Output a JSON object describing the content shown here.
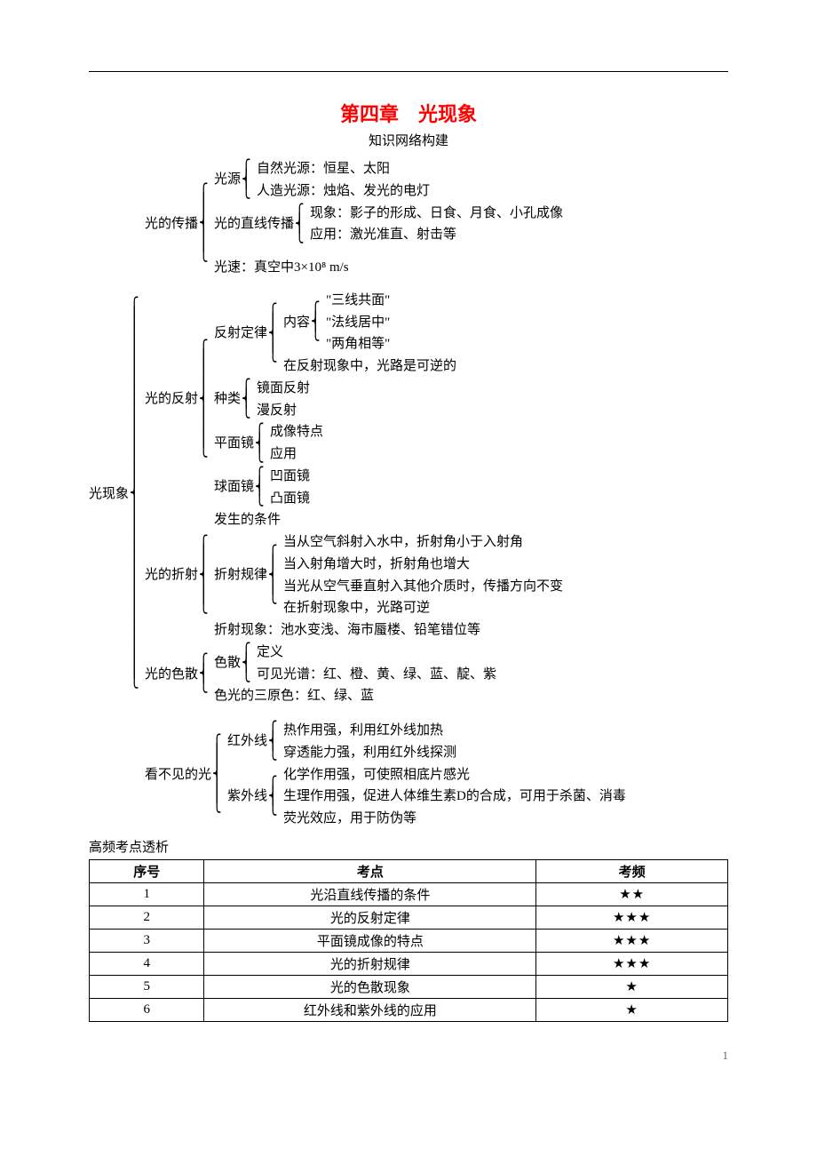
{
  "title": "第四章　光现象",
  "subtitle": "知识网络构建",
  "root_label": "光现象",
  "sections": {
    "propagation": {
      "label": "光的传播",
      "light_source": {
        "label": "光源",
        "natural": "自然光源：恒星、太阳",
        "artificial": "人造光源：烛焰、发光的电灯"
      },
      "straight_line": {
        "label": "光的直线传播",
        "phenomena": "现象：影子的形成、日食、月食、小孔成像",
        "application": "应用：激光准直、射击等"
      },
      "speed": "光速：真空中3×10⁸ m/s"
    },
    "reflection": {
      "label": "光的反射",
      "law": {
        "label": "反射定律",
        "content_label": "内容",
        "c1": "\"三线共面\"",
        "c2": "\"法线居中\"",
        "c3": "\"两角相等\"",
        "reversible": "在反射现象中，光路是可逆的"
      },
      "types": {
        "label": "种类",
        "t1": "镜面反射",
        "t2": "漫反射"
      },
      "plane_mirror": {
        "label": "平面镜",
        "p1": "成像特点",
        "p2": "应用"
      },
      "sphere_mirror": {
        "label": "球面镜",
        "s1": "凹面镜",
        "s2": "凸面镜"
      }
    },
    "refraction": {
      "label": "光的折射",
      "condition": "发生的条件",
      "rules": {
        "label": "折射规律",
        "r1": "当从空气斜射入水中，折射角小于入射角",
        "r2": "当入射角增大时，折射角也增大",
        "r3": "当光从空气垂直射入其他介质时，传播方向不变",
        "r4": "在折射现象中，光路可逆"
      },
      "phenomena": "折射现象：池水变浅、海市蜃楼、铅笔错位等"
    },
    "dispersion": {
      "label": "光的色散",
      "disp": {
        "label": "色散",
        "d1": "定义",
        "d2": "可见光谱：红、橙、黄、绿、蓝、靛、紫"
      },
      "primary": "色光的三原色：红、绿、蓝"
    },
    "invisible": {
      "label": "看不见的光",
      "ir": {
        "label": "红外线",
        "i1": "热作用强，利用红外线加热",
        "i2": "穿透能力强，利用红外线探测"
      },
      "uv": {
        "label": "紫外线",
        "u1": "化学作用强，可使照相底片感光",
        "u2": "生理作用强，促进人体维生素D的合成，可用于杀菌、消毒",
        "u3": "荧光效应，用于防伪等"
      }
    }
  },
  "freq": {
    "heading": "高频考点透析",
    "columns": [
      "序号",
      "考点",
      "考频"
    ],
    "rows": [
      [
        "1",
        "光沿直线传播的条件",
        "★★"
      ],
      [
        "2",
        "光的反射定律",
        "★★★"
      ],
      [
        "3",
        "平面镜成像的特点",
        "★★★"
      ],
      [
        "4",
        "光的折射规律",
        "★★★"
      ],
      [
        "5",
        "光的色散现象",
        "★"
      ],
      [
        "6",
        "红外线和紫外线的应用",
        "★"
      ]
    ]
  },
  "page_number": "1"
}
